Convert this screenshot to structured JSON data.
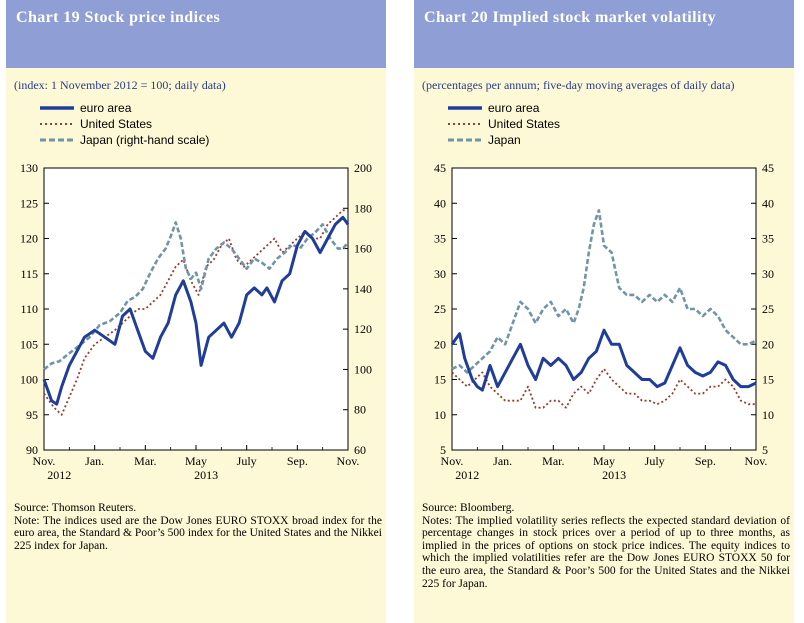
{
  "colors": {
    "euro": "#1f3d99",
    "us": "#9b3a2e",
    "japan": "#6f95a6",
    "header_bg": "#8f9fd6",
    "panel_bg": "#fdf8d6"
  },
  "chart19": {
    "title": "Chart 19 Stock price indices",
    "subtitle": "(index: 1 November 2012 = 100; daily data)",
    "legend": [
      "euro area",
      "United States",
      "Japan (right-hand scale)"
    ],
    "source": "Source: Thomson Reuters.",
    "note": "Note: The indices used are the Dow Jones EURO STOXX broad index for the euro area, the Standard & Poor’s 500 index for the United States and the Nikkei 225 index for Japan."
  },
  "chart20": {
    "title": "Chart 20 Implied stock market volatility",
    "subtitle": "(percentages per annum; five-day moving averages of daily data)",
    "legend": [
      "euro area",
      "United States",
      "Japan"
    ],
    "source": "Source: Bloomberg.",
    "note": "Notes: The implied volatility series reflects the expected standard deviation of percentage changes in stock prices over a period of up to three months, as implied in the prices of options on stock price indices. The equity indices to which the implied volatilities refer are the Dow Jones EURO STOXX 50 for the euro area, the Standard & Poor’s 500 for the United States and the Nikkei 225 for Japan."
  },
  "chart_data": [
    {
      "type": "line",
      "title": "Chart 19 Stock price indices",
      "x_ticks": [
        "Nov.",
        "Jan.",
        "Mar.",
        "May",
        "July",
        "Sep.",
        "Nov."
      ],
      "x_year_labels": [
        "2012",
        "2013"
      ],
      "x_range": [
        0,
        12
      ],
      "ylim": [
        90,
        130
      ],
      "y_ticks": [
        90,
        95,
        100,
        105,
        110,
        115,
        120,
        125,
        130
      ],
      "y2lim": [
        60,
        200
      ],
      "y2_ticks": [
        60,
        80,
        100,
        120,
        140,
        160,
        180,
        200
      ],
      "series": [
        {
          "name": "euro area",
          "axis": "left",
          "x": [
            0,
            0.3,
            0.5,
            0.7,
            1.0,
            1.3,
            1.6,
            2.0,
            2.4,
            2.8,
            3.1,
            3.4,
            3.7,
            4.0,
            4.3,
            4.6,
            4.9,
            5.2,
            5.5,
            5.8,
            6.0,
            6.2,
            6.5,
            6.8,
            7.1,
            7.4,
            7.7,
            8.0,
            8.3,
            8.6,
            8.8,
            9.1,
            9.4,
            9.7,
            10.0,
            10.3,
            10.6,
            10.9,
            11.2,
            11.5,
            11.8,
            12.0
          ],
          "values": [
            100,
            97,
            96.5,
            99,
            102,
            104,
            106,
            107,
            106,
            105,
            109,
            110,
            107,
            104,
            103,
            106,
            108,
            112,
            114,
            111,
            108,
            102,
            106,
            107,
            108,
            106,
            108,
            112,
            113,
            112,
            113,
            111,
            114,
            115,
            119,
            121,
            120,
            118,
            120,
            122,
            123,
            122
          ]
        },
        {
          "name": "United States",
          "axis": "left",
          "x": [
            0,
            0.4,
            0.7,
            1.0,
            1.3,
            1.6,
            2.0,
            2.4,
            2.8,
            3.1,
            3.4,
            3.7,
            4.0,
            4.3,
            4.6,
            4.9,
            5.2,
            5.5,
            5.8,
            6.1,
            6.4,
            6.7,
            7.0,
            7.3,
            7.6,
            7.9,
            8.2,
            8.5,
            8.8,
            9.1,
            9.4,
            9.7,
            10.0,
            10.3,
            10.6,
            10.9,
            11.2,
            11.5,
            11.8,
            12.0
          ],
          "values": [
            98,
            96,
            95,
            97.5,
            100,
            103,
            105,
            106,
            107,
            108,
            109,
            110,
            110,
            111,
            112,
            114,
            116,
            117,
            114,
            112,
            116,
            117,
            119,
            120,
            117,
            116,
            117,
            118,
            119,
            120,
            118,
            119,
            120,
            121,
            120,
            120,
            122,
            123,
            124,
            124
          ]
        },
        {
          "name": "Japan (right-hand scale)",
          "axis": "right",
          "x": [
            0,
            0.3,
            0.6,
            1.0,
            1.4,
            1.8,
            2.2,
            2.6,
            3.0,
            3.3,
            3.6,
            3.9,
            4.2,
            4.5,
            4.8,
            5.0,
            5.2,
            5.4,
            5.6,
            5.8,
            6.0,
            6.2,
            6.5,
            6.8,
            7.1,
            7.4,
            7.7,
            8.0,
            8.3,
            8.6,
            8.9,
            9.2,
            9.5,
            9.8,
            10.1,
            10.4,
            10.7,
            11.0,
            11.3,
            11.6,
            11.8,
            12.0
          ],
          "values": [
            100,
            103,
            104,
            108,
            112,
            116,
            122,
            124,
            128,
            134,
            136,
            140,
            148,
            155,
            160,
            166,
            173,
            165,
            150,
            145,
            148,
            140,
            155,
            160,
            163,
            160,
            155,
            150,
            155,
            153,
            150,
            155,
            158,
            162,
            160,
            165,
            168,
            172,
            165,
            160,
            160,
            163
          ]
        }
      ]
    },
    {
      "type": "line",
      "title": "Chart 20 Implied stock market volatility",
      "x_ticks": [
        "Nov.",
        "Jan.",
        "Mar.",
        "May",
        "July",
        "Sep.",
        "Nov."
      ],
      "x_year_labels": [
        "2012",
        "2013"
      ],
      "x_range": [
        0,
        12
      ],
      "ylim": [
        5,
        45
      ],
      "y_ticks": [
        5,
        10,
        15,
        20,
        25,
        30,
        35,
        40,
        45
      ],
      "series": [
        {
          "name": "euro area",
          "x": [
            0,
            0.3,
            0.5,
            0.8,
            1.0,
            1.2,
            1.5,
            1.8,
            2.1,
            2.4,
            2.7,
            3.0,
            3.3,
            3.6,
            3.9,
            4.2,
            4.5,
            4.8,
            5.1,
            5.4,
            5.7,
            6.0,
            6.3,
            6.6,
            6.9,
            7.2,
            7.5,
            7.8,
            8.1,
            8.4,
            8.7,
            9.0,
            9.3,
            9.6,
            9.9,
            10.2,
            10.5,
            10.8,
            11.1,
            11.4,
            11.7,
            12.0
          ],
          "values": [
            20,
            21.5,
            18,
            15,
            14,
            13.5,
            17,
            14,
            16,
            18,
            20,
            17,
            15,
            18,
            17,
            18,
            17,
            15,
            16,
            18,
            19,
            22,
            20,
            20,
            17,
            16,
            15,
            15,
            14,
            14.5,
            17,
            19.5,
            17,
            16,
            15.5,
            16,
            17.5,
            17,
            15,
            14,
            14,
            14.5
          ]
        },
        {
          "name": "United States",
          "x": [
            0,
            0.3,
            0.6,
            0.9,
            1.2,
            1.5,
            1.8,
            2.1,
            2.4,
            2.7,
            3.0,
            3.3,
            3.6,
            3.9,
            4.2,
            4.5,
            4.8,
            5.1,
            5.4,
            5.7,
            6.0,
            6.3,
            6.6,
            6.9,
            7.2,
            7.5,
            7.8,
            8.1,
            8.4,
            8.7,
            9.0,
            9.3,
            9.6,
            9.9,
            10.2,
            10.5,
            10.8,
            11.1,
            11.4,
            11.7,
            12.0
          ],
          "values": [
            16,
            15,
            14,
            15,
            16,
            14,
            13,
            12,
            12,
            12,
            14,
            11,
            11,
            12,
            12,
            11,
            13,
            14,
            13,
            15,
            16.5,
            15,
            14,
            13,
            13,
            12,
            12,
            11.5,
            12,
            13,
            15,
            14,
            13,
            13,
            14,
            14,
            15,
            14,
            12,
            11.5,
            11.5
          ]
        },
        {
          "name": "Japan",
          "x": [
            0,
            0.3,
            0.6,
            0.9,
            1.2,
            1.5,
            1.8,
            2.1,
            2.4,
            2.7,
            3.0,
            3.3,
            3.6,
            3.9,
            4.2,
            4.5,
            4.8,
            5.0,
            5.2,
            5.4,
            5.6,
            5.8,
            6.0,
            6.3,
            6.6,
            6.9,
            7.2,
            7.5,
            7.8,
            8.1,
            8.4,
            8.7,
            9.0,
            9.3,
            9.6,
            9.9,
            10.2,
            10.5,
            10.8,
            11.1,
            11.4,
            11.7,
            12.0
          ],
          "values": [
            16.5,
            17,
            16,
            17,
            18,
            19,
            21,
            20,
            23,
            26,
            25,
            23,
            25,
            26,
            24,
            25,
            23,
            25,
            28,
            33,
            37,
            39,
            34,
            33,
            28,
            27,
            27,
            26,
            27,
            26,
            27,
            26,
            28,
            25,
            25,
            24,
            25,
            24,
            22,
            21,
            20,
            20,
            20.5
          ]
        }
      ]
    }
  ]
}
